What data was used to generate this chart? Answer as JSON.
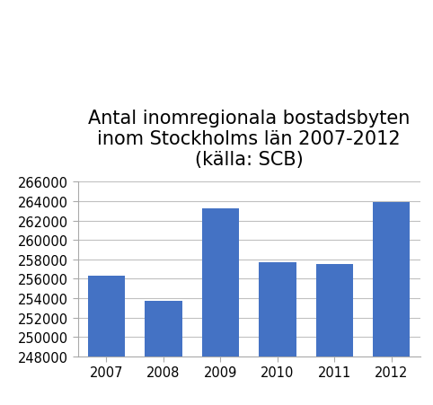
{
  "title": "Antal inomregionala bostadsbyten\ninom Stockholms län 2007-2012\n(källa: SCB)",
  "categories": [
    "2007",
    "2008",
    "2009",
    "2010",
    "2011",
    "2012"
  ],
  "values": [
    256300,
    253700,
    263300,
    257700,
    257500,
    263900
  ],
  "bar_color": "#4472C4",
  "ylim": [
    248000,
    266000
  ],
  "yticks": [
    248000,
    250000,
    252000,
    254000,
    256000,
    258000,
    260000,
    262000,
    264000,
    266000
  ],
  "title_fontsize": 15,
  "tick_fontsize": 10.5,
  "background_color": "#ffffff",
  "grid_color": "#c0c0c0"
}
